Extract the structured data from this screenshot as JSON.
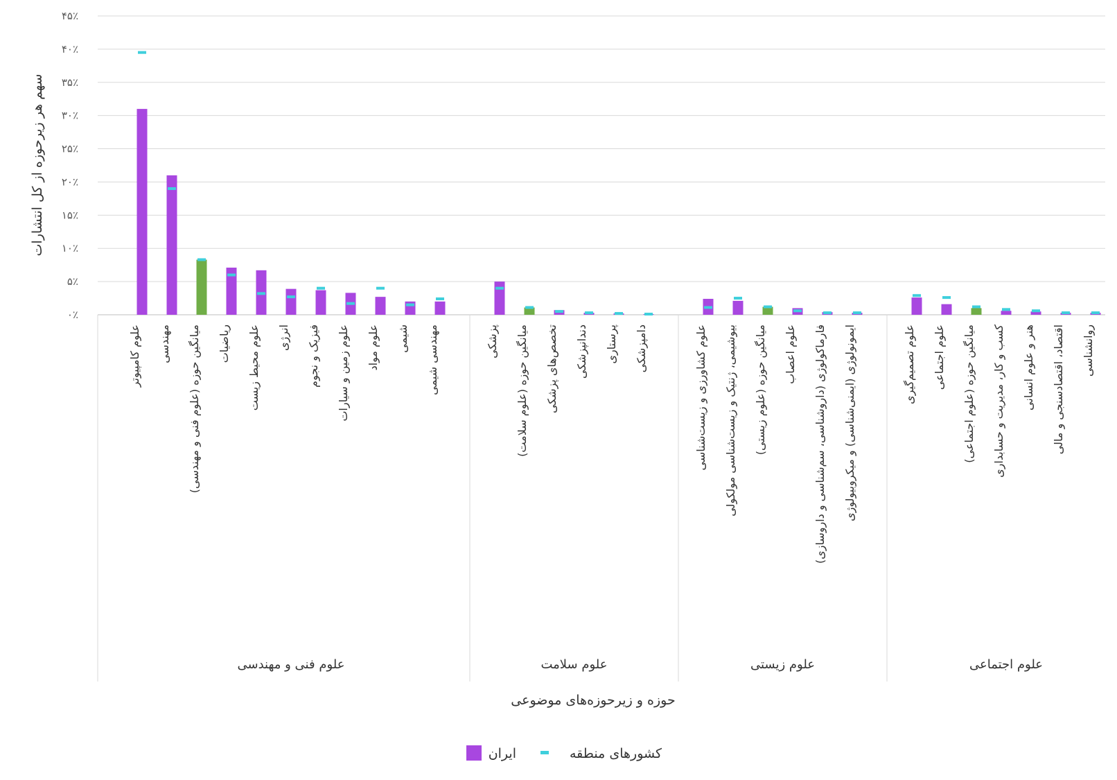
{
  "chart_data": {
    "type": "bar",
    "ylabel": "سهم هر زیرحوزه از کل انتشارات",
    "xlabel": "حوزه و زیرحوزه‌های موضوعی",
    "ylim": [
      0,
      45
    ],
    "yticks": [
      "۰٪",
      "۵٪",
      "۱۰٪",
      "۱۵٪",
      "۲۰٪",
      "۲۵٪",
      "۳۰٪",
      "۳۵٪",
      "۴۰٪",
      "۴۵٪"
    ],
    "grid": true,
    "legend_position": "bottom",
    "series": [
      {
        "name": "ایران",
        "color": "#a847e0"
      },
      {
        "name": "کشورهای منطقه",
        "color": "#3fcfdc"
      }
    ],
    "average_bar_color": "#70ad47",
    "groups": [
      {
        "name": "علوم فنی و مهندسی",
        "categories": [
          {
            "label": "علوم کامپیوتر",
            "iran": 31,
            "region": 39.5
          },
          {
            "label": "مهندسی",
            "iran": 21,
            "region": 19
          },
          {
            "label": "میانگین حوزه (علوم فنی و مهندسی)",
            "iran": 8.3,
            "region": 8.3,
            "is_average": true
          },
          {
            "label": "ریاضیات",
            "iran": 7.1,
            "region": 6
          },
          {
            "label": "علوم محیط زیست",
            "iran": 6.7,
            "region": 3.2
          },
          {
            "label": "انرژی",
            "iran": 3.9,
            "region": 2.7
          },
          {
            "label": "فیزیک و نجوم",
            "iran": 3.7,
            "region": 4
          },
          {
            "label": "علوم زمین و سیارات",
            "iran": 3.3,
            "region": 1.7
          },
          {
            "label": "علوم مواد",
            "iran": 2.7,
            "region": 4
          },
          {
            "label": "شیمی",
            "iran": 2,
            "region": 1.5
          },
          {
            "label": "مهندسی شیمی",
            "iran": 2,
            "region": 2.4
          }
        ]
      },
      {
        "name": "علوم سلامت",
        "categories": [
          {
            "label": "پزشکی",
            "iran": 5,
            "region": 4
          },
          {
            "label": "میانگین حوزه (علوم سلامت)",
            "iran": 1.1,
            "region": 1.1,
            "is_average": true
          },
          {
            "label": "تخصص‌های پزشکی",
            "iran": 0.7,
            "region": 0.5
          },
          {
            "label": "دندانپزشکی",
            "iran": 0.3,
            "region": 0.3
          },
          {
            "label": "پرستاری",
            "iran": 0.2,
            "region": 0.2
          },
          {
            "label": "دامپزشکی",
            "iran": 0.1,
            "region": 0.1
          }
        ]
      },
      {
        "name": "علوم زیستی",
        "categories": [
          {
            "label": "علوم کشاورزی و زیست‌شناسی",
            "iran": 2.4,
            "region": 1.1
          },
          {
            "label": "بیوشیمی، ژنتیک و زیست‌شناسی مولکولی",
            "iran": 2.1,
            "region": 2.5
          },
          {
            "label": "میانگین حوزه (علوم زیستی)",
            "iran": 1.2,
            "region": 1.2,
            "is_average": true
          },
          {
            "label": "علوم اعصاب",
            "iran": 1,
            "region": 0.6
          },
          {
            "label": "فارماکولوژی (داروشناسی، سم‌شناسی و داروسازی)",
            "iran": 0.4,
            "region": 0.3
          },
          {
            "label": "ایمونولوژی (ایمنی‌شناسی) و میکروبیولوژی",
            "iran": 0.3,
            "region": 0.3
          }
        ]
      },
      {
        "name": "علوم اجتماعی",
        "categories": [
          {
            "label": "علوم تصمیم‌گیری",
            "iran": 2.6,
            "region": 2.9
          },
          {
            "label": "علوم اجتماعی",
            "iran": 1.6,
            "region": 2.6
          },
          {
            "label": "میانگین حوزه (علوم اجتماعی)",
            "iran": 1,
            "region": 1.2,
            "is_average": true
          },
          {
            "label": "کسب و کار، مدیریت و حسابداری",
            "iran": 0.6,
            "region": 0.8
          },
          {
            "label": "هنر و علوم انسانی",
            "iran": 0.5,
            "region": 0.6
          },
          {
            "label": "اقتصاد، اقتصادسنجی و مالی",
            "iran": 0.3,
            "region": 0.3
          },
          {
            "label": "روانشناسی",
            "iran": 0.3,
            "region": 0.3
          }
        ]
      }
    ]
  }
}
